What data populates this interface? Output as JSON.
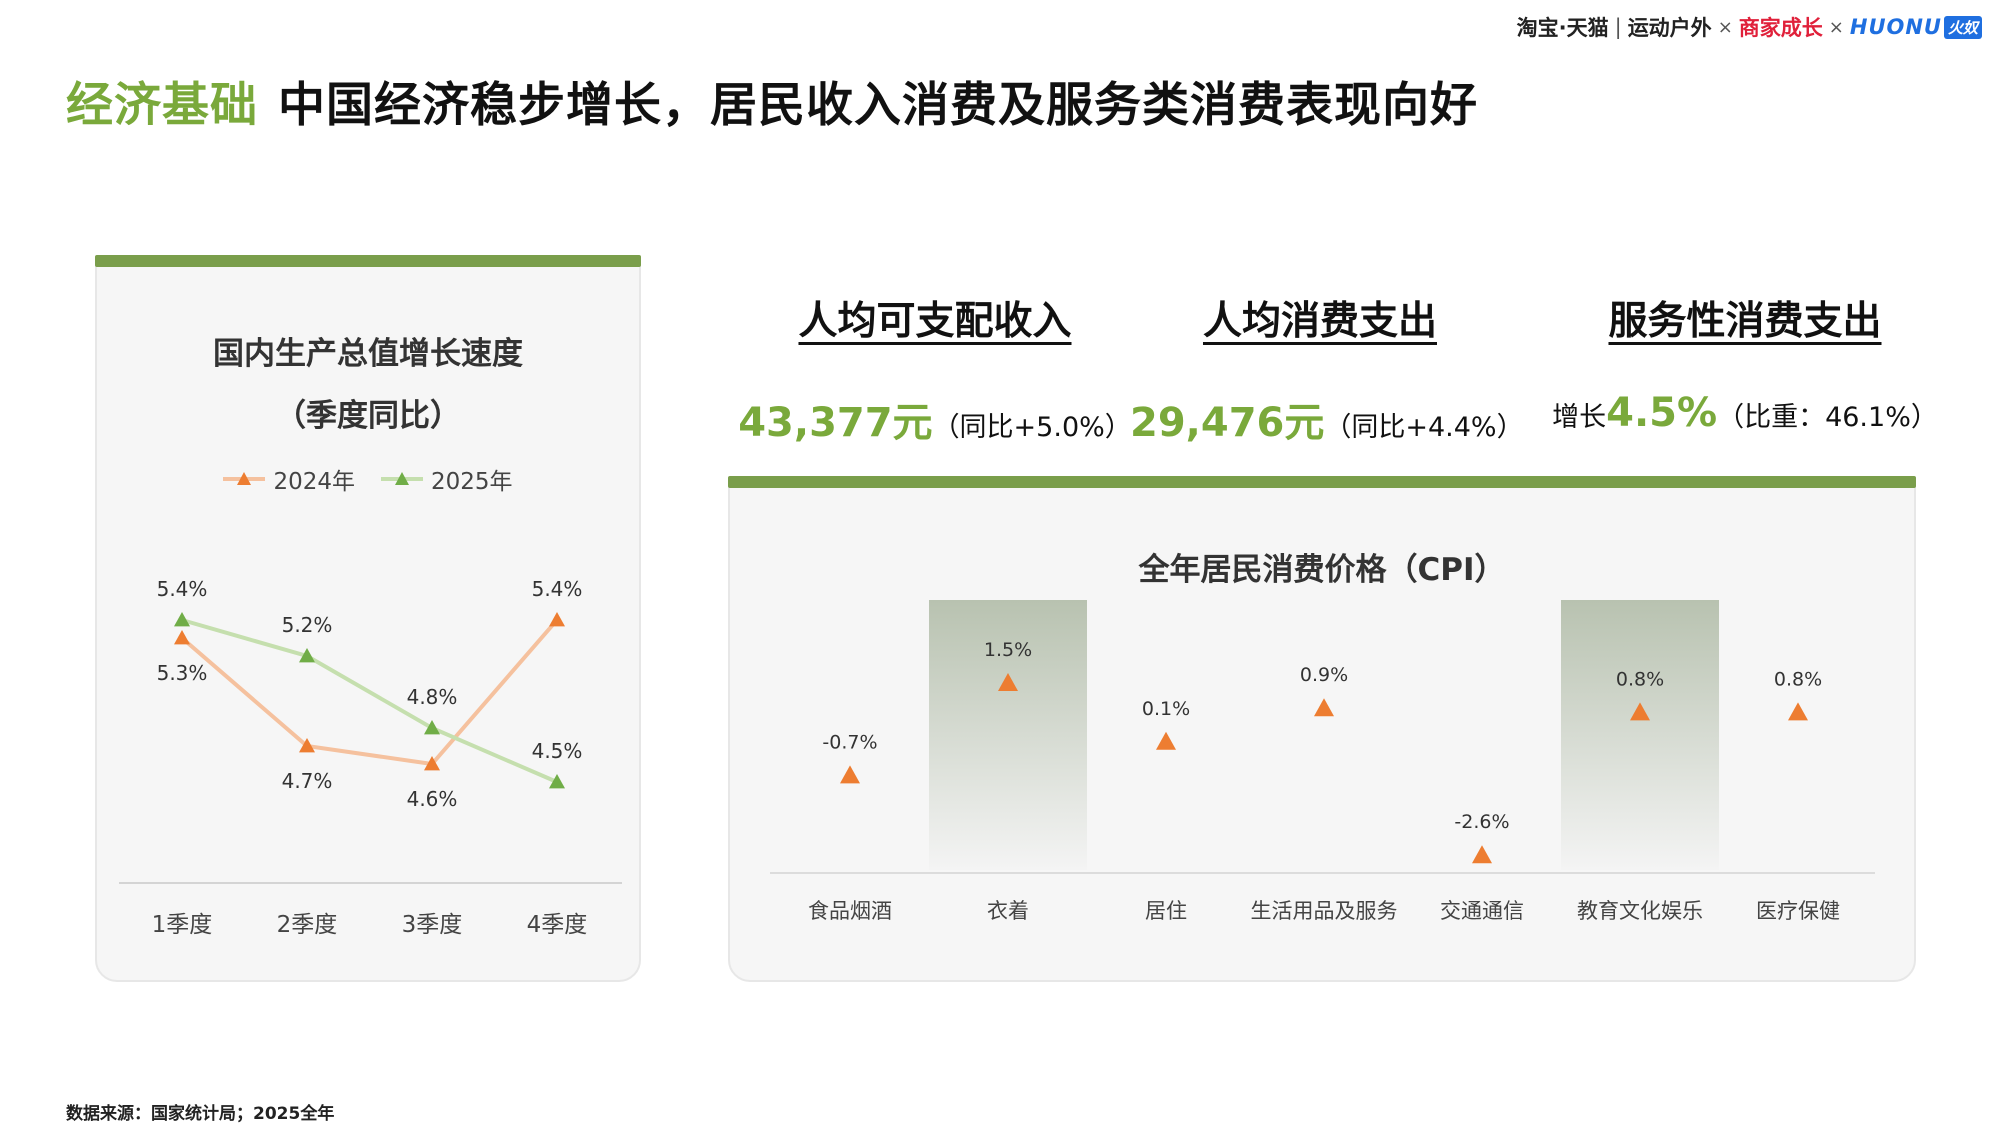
{
  "brand": {
    "taobao": "淘宝·天猫",
    "outdoor": "运动户外",
    "growth": "商家成长",
    "huanu": "HUONU",
    "huanu_badge": "火奴",
    "times": "×",
    "pipe": "|"
  },
  "headline": {
    "tag": "经济基础",
    "text": "中国经济稳步增长，居民收入消费及服务类消费表现向好"
  },
  "kpis": [
    {
      "label": "人均可支配收入",
      "prefix": "",
      "value": "43,377元",
      "note": "（同比+5.0%）"
    },
    {
      "label": "人均消费支出",
      "prefix": "",
      "value": "29,476元",
      "note": "（同比+4.4%）"
    },
    {
      "label": "服务性消费支出",
      "prefix": "增长",
      "value": "4.5%",
      "note": "（比重：46.1%）"
    }
  ],
  "colors": {
    "accent_green": "#7aa93b",
    "bar_green": "#7a9e4b",
    "series_2024_line": "#f5c19e",
    "series_2024_marker": "#ed7d31",
    "series_2025_line": "#c5dfae",
    "series_2025_marker": "#70ad47",
    "cpi_marker": "#ed7d31"
  },
  "chart_data": [
    {
      "type": "line",
      "title": "国内生产总值增长速度",
      "subtitle": "（季度同比）",
      "categories": [
        "1季度",
        "2季度",
        "3季度",
        "4季度"
      ],
      "series": [
        {
          "name": "2024年",
          "values": [
            5.3,
            4.7,
            4.6,
            5.4
          ],
          "labels": [
            "5.3%",
            "4.7%",
            "4.6%",
            "5.4%"
          ]
        },
        {
          "name": "2025年",
          "values": [
            5.4,
            5.2,
            4.8,
            4.5
          ],
          "labels": [
            "5.4%",
            "5.2%",
            "4.8%",
            "4.5%"
          ]
        }
      ],
      "legend": "top",
      "grid": false
    },
    {
      "type": "scatter",
      "title": "全年居民消费价格（CPI）",
      "categories": [
        "食品烟酒",
        "衣着",
        "居住",
        "生活用品及服务",
        "交通通信",
        "教育文化娱乐",
        "医疗保健"
      ],
      "values": [
        -0.7,
        1.5,
        0.1,
        0.9,
        -2.6,
        0.8,
        0.8
      ],
      "labels": [
        "-0.7%",
        "1.5%",
        "0.1%",
        "0.9%",
        "-2.6%",
        "0.8%",
        "0.8%"
      ],
      "highlighted": [
        "衣着",
        "教育文化娱乐"
      ],
      "grid": false
    }
  ],
  "footnote": "数据来源：国家统计局；2025全年"
}
